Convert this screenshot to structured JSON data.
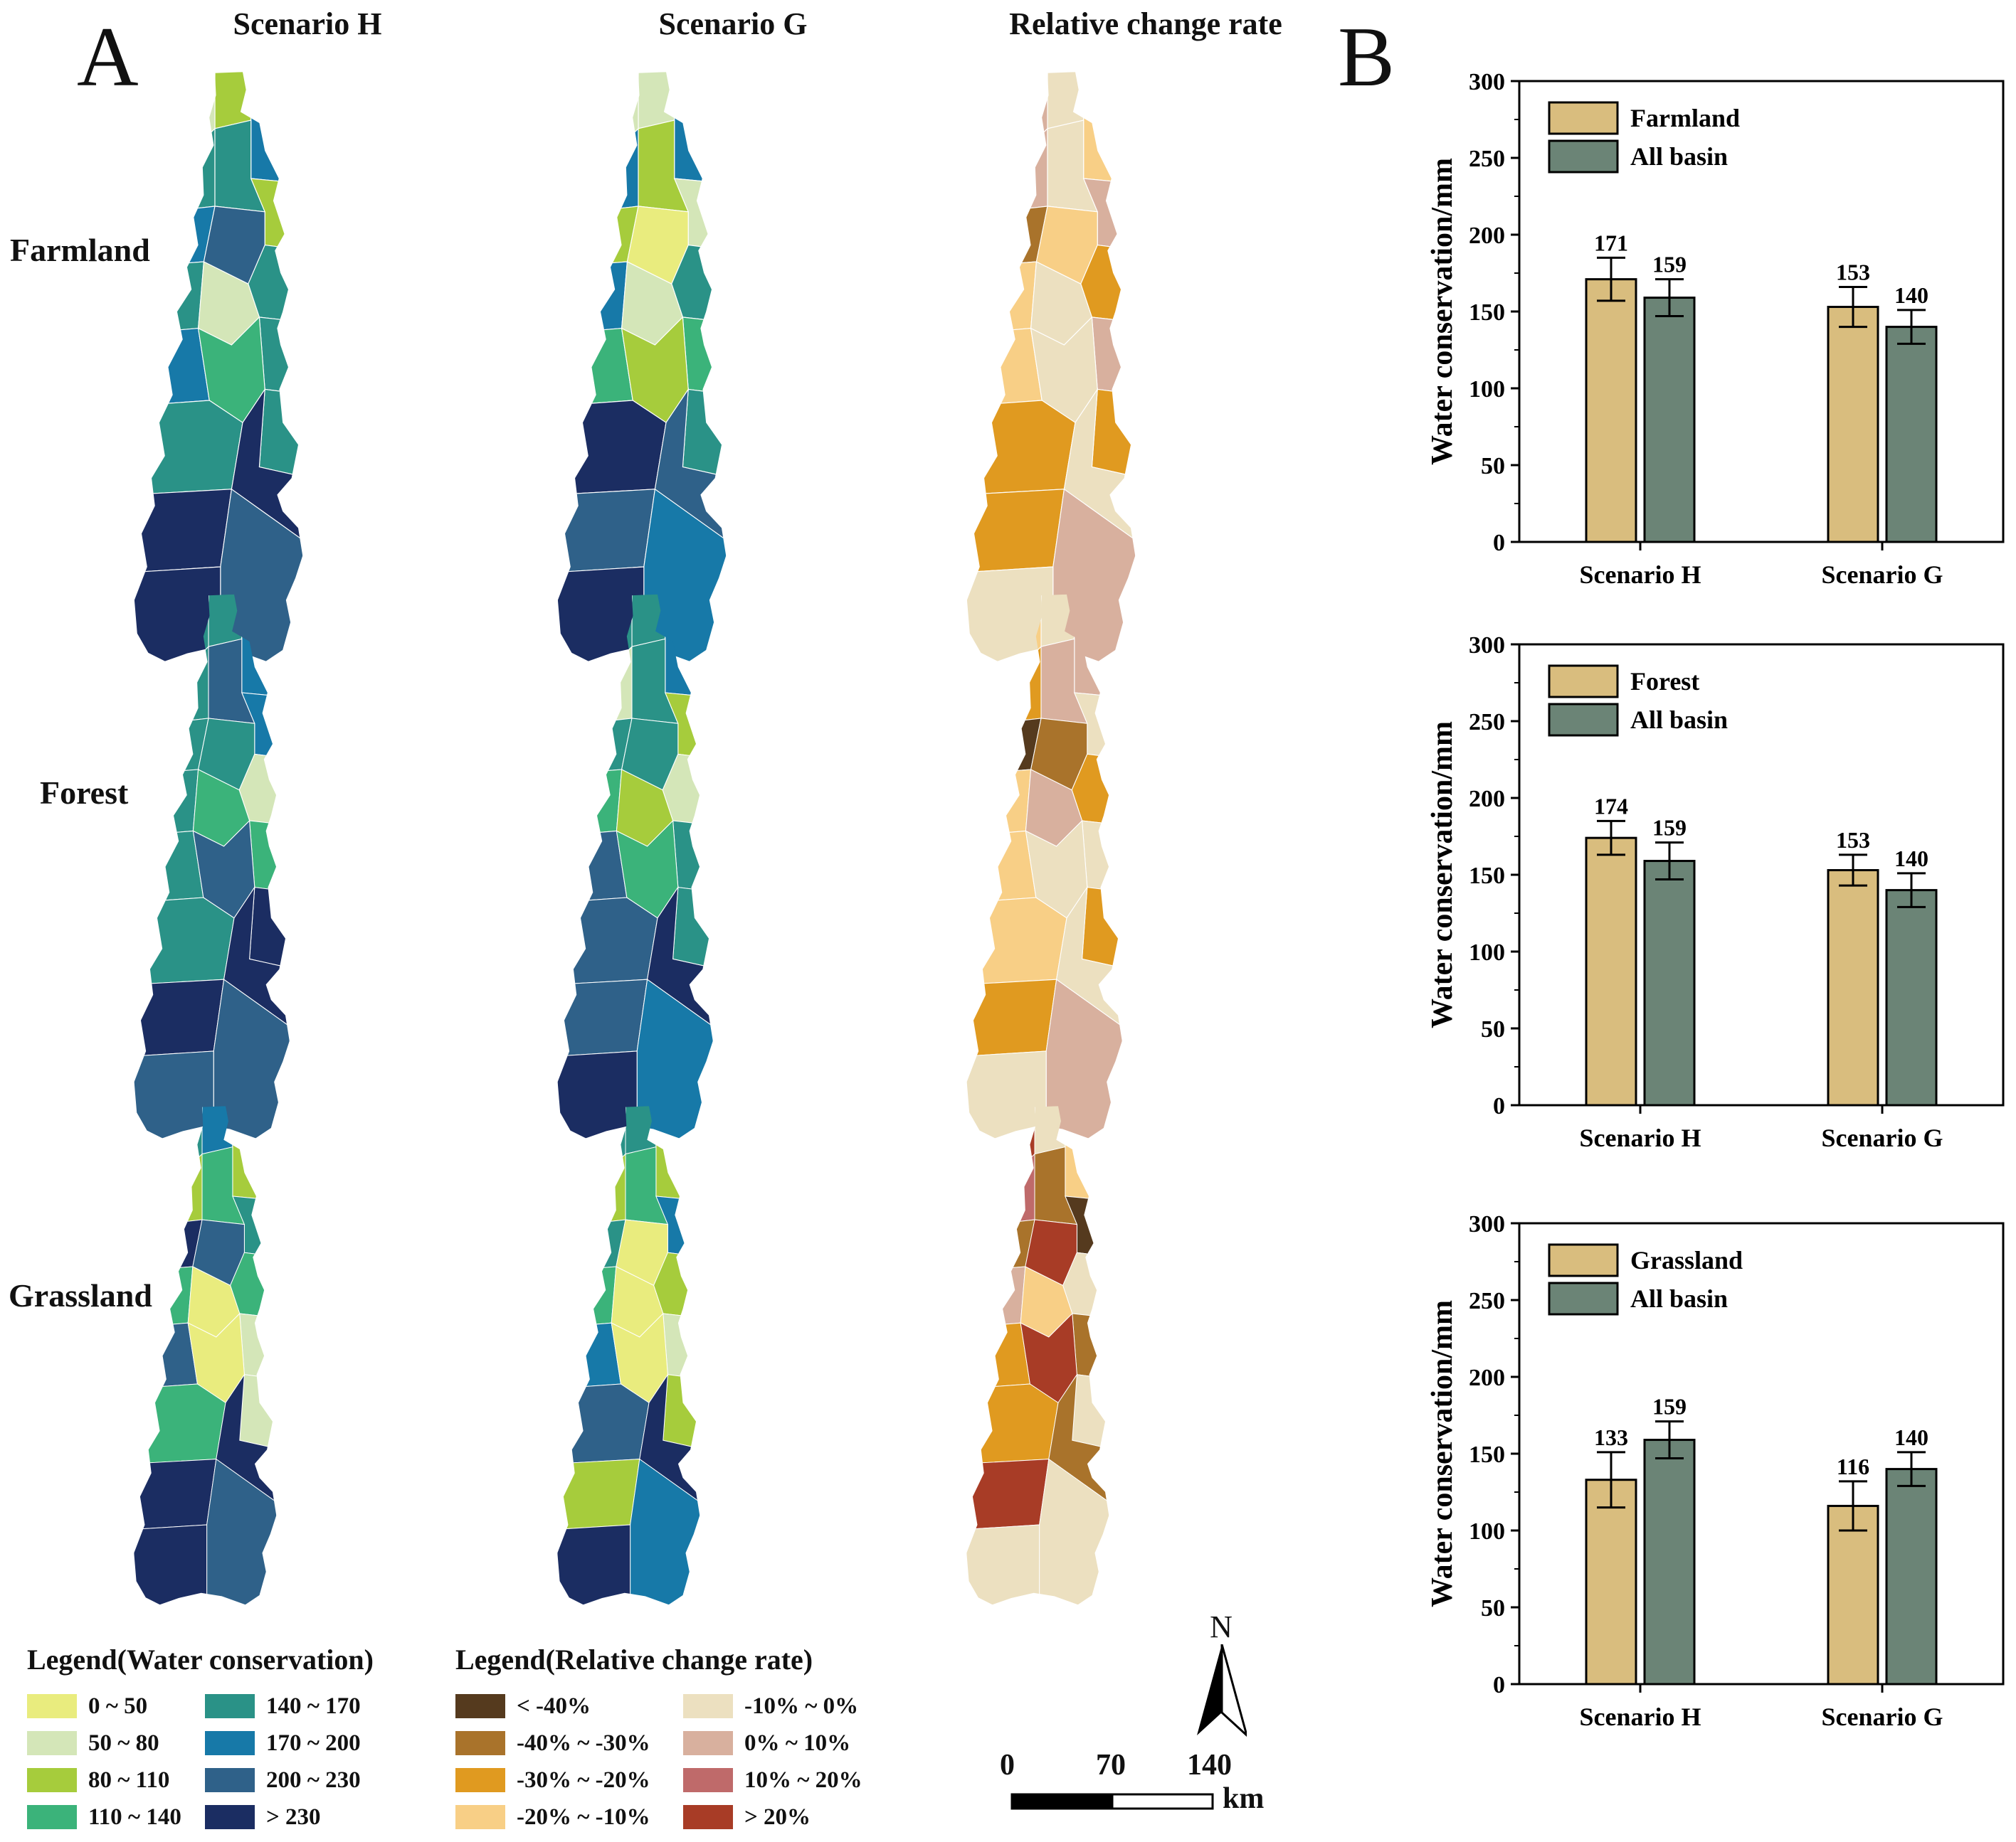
{
  "panel_a": {
    "letter": "A",
    "columns": [
      "Scenario H",
      "Scenario G",
      "Relative change rate"
    ],
    "rows": [
      "Farmland",
      "Forest",
      "Grassland"
    ]
  },
  "panel_b": {
    "letter": "B"
  },
  "colors": {
    "wc": [
      "#e9ec7e",
      "#d4e6b8",
      "#a6cc3c",
      "#3bb37a",
      "#2a9287",
      "#1779a8",
      "#2f6189",
      "#1b2d62"
    ],
    "rc": [
      "#553a1e",
      "#a9732b",
      "#e09a20",
      "#f8cf86",
      "#ece0c0",
      "#d8b09e",
      "#bf6a6a",
      "#a83c26"
    ],
    "bar_primary": "#d9bd7e",
    "bar_basin": "#6b8476"
  },
  "legend_wc": {
    "title": "Legend(Water conservation)",
    "items": [
      "0 ~ 50",
      "50 ~ 80",
      "80 ~ 110",
      "110 ~ 140",
      "140 ~ 170",
      "170 ~ 200",
      "200 ~ 230",
      "> 230"
    ]
  },
  "legend_rc": {
    "title": "Legend(Relative change rate)",
    "items": [
      "< -40%",
      "-40% ~ -30%",
      "-30% ~ -20%",
      "-20% ~ -10%",
      "-10% ~ 0%",
      "0% ~ 10%",
      "10% ~ 20%",
      "> 20%"
    ]
  },
  "north": "N",
  "scale_bar": {
    "ticks": [
      "0",
      "70",
      "140"
    ],
    "unit": "km"
  },
  "maps": {
    "scenario_h": [
      [
        2,
        1,
        5,
        4,
        4,
        2,
        5,
        6,
        4,
        4,
        1,
        4,
        5,
        3,
        4,
        4,
        7,
        7,
        6,
        7
      ],
      [
        4,
        4,
        5,
        4,
        6,
        5,
        4,
        4,
        1,
        4,
        3,
        3,
        4,
        6,
        7,
        4,
        7,
        7,
        6,
        6
      ],
      [
        5,
        4,
        2,
        2,
        3,
        4,
        7,
        6,
        3,
        3,
        0,
        1,
        6,
        0,
        1,
        3,
        7,
        7,
        6,
        7
      ]
    ],
    "scenario_g": [
      [
        1,
        1,
        5,
        5,
        2,
        1,
        2,
        0,
        4,
        5,
        1,
        3,
        3,
        2,
        4,
        7,
        6,
        6,
        5,
        7
      ],
      [
        4,
        4,
        5,
        1,
        4,
        2,
        4,
        4,
        1,
        3,
        2,
        4,
        6,
        3,
        4,
        6,
        7,
        6,
        5,
        7
      ],
      [
        4,
        4,
        2,
        2,
        3,
        5,
        4,
        0,
        2,
        3,
        0,
        1,
        5,
        0,
        2,
        6,
        7,
        2,
        5,
        7
      ]
    ],
    "change_rate": [
      [
        4,
        5,
        3,
        5,
        4,
        5,
        1,
        3,
        2,
        3,
        4,
        5,
        3,
        4,
        2,
        2,
        4,
        2,
        5,
        4
      ],
      [
        4,
        3,
        5,
        2,
        5,
        4,
        0,
        1,
        2,
        3,
        5,
        4,
        3,
        4,
        2,
        3,
        4,
        2,
        5,
        4
      ],
      [
        4,
        7,
        3,
        6,
        1,
        0,
        1,
        7,
        4,
        5,
        3,
        1,
        2,
        7,
        4,
        2,
        1,
        7,
        4,
        4
      ]
    ]
  },
  "chart_data": [
    {
      "type": "bar",
      "ylabel": "Water conservation/mm",
      "ylim": [
        0,
        300
      ],
      "yticks": [
        0,
        50,
        100,
        150,
        200,
        250,
        300
      ],
      "categories": [
        "Scenario H",
        "Scenario G"
      ],
      "series": [
        {
          "name": "Farmland",
          "values": [
            171,
            153
          ],
          "errors": [
            14,
            13
          ]
        },
        {
          "name": "All basin",
          "values": [
            159,
            140
          ],
          "errors": [
            12,
            11
          ]
        }
      ],
      "value_labels": [
        "171",
        "159",
        "153",
        "140"
      ],
      "legend_position": "top-left"
    },
    {
      "type": "bar",
      "ylabel": "Water conservation/mm",
      "ylim": [
        0,
        300
      ],
      "yticks": [
        0,
        50,
        100,
        150,
        200,
        250,
        300
      ],
      "categories": [
        "Scenario H",
        "Scenario G"
      ],
      "series": [
        {
          "name": "Forest",
          "values": [
            174,
            153
          ],
          "errors": [
            11,
            10
          ]
        },
        {
          "name": "All basin",
          "values": [
            159,
            140
          ],
          "errors": [
            12,
            11
          ]
        }
      ],
      "value_labels": [
        "174",
        "159",
        "153",
        "140"
      ],
      "legend_position": "top-left"
    },
    {
      "type": "bar",
      "ylabel": "Water conservation/mm",
      "ylim": [
        0,
        300
      ],
      "yticks": [
        0,
        50,
        100,
        150,
        200,
        250,
        300
      ],
      "categories": [
        "Scenario H",
        "Scenario G"
      ],
      "series": [
        {
          "name": "Grassland",
          "values": [
            133,
            116
          ],
          "errors": [
            18,
            16
          ]
        },
        {
          "name": "All basin",
          "values": [
            159,
            140
          ],
          "errors": [
            12,
            11
          ]
        }
      ],
      "value_labels": [
        "133",
        "159",
        "116",
        "140"
      ],
      "legend_position": "top-left"
    }
  ]
}
